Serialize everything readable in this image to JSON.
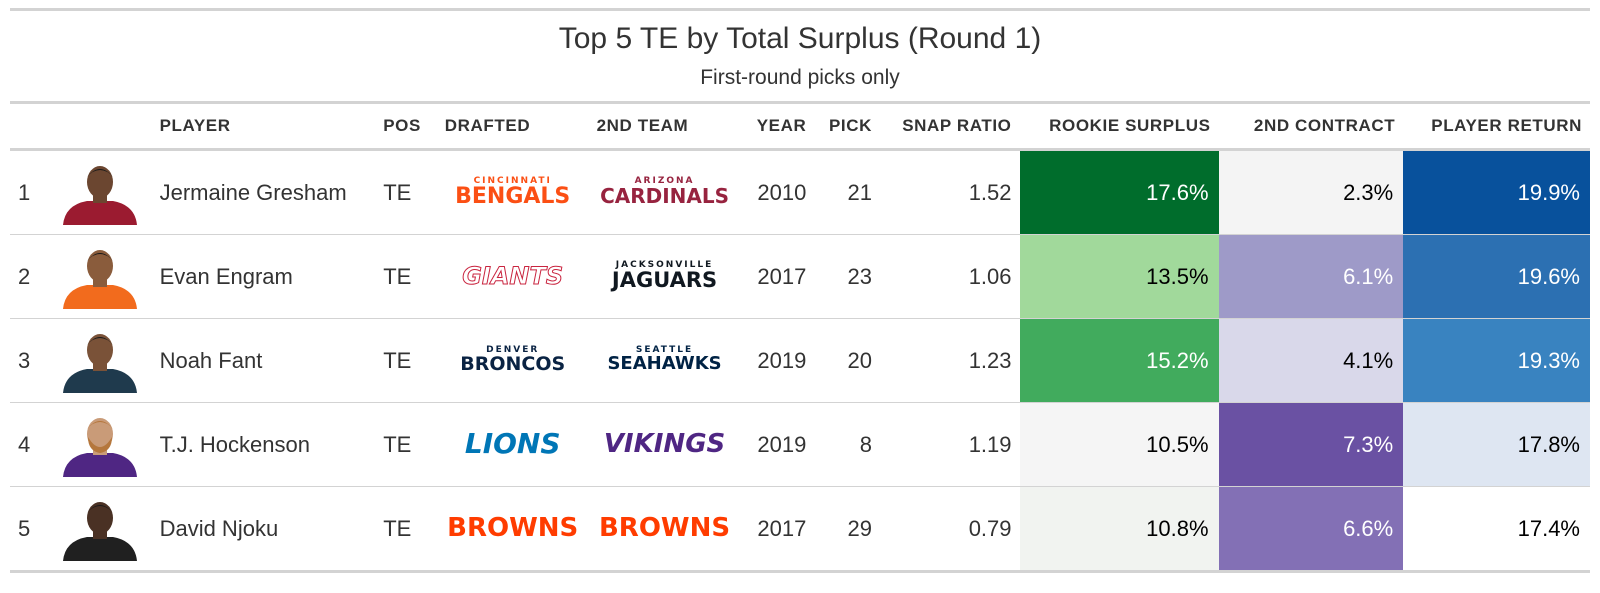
{
  "chart_data": {
    "type": "table",
    "title": "Top 5 TE by Total Surplus (Round 1)",
    "subtitle": "First-round picks only",
    "columns": [
      "",
      "",
      "PLAYER",
      "POS",
      "DRAFTED",
      "2ND TEAM",
      "YEAR",
      "PICK",
      "SNAP RATIO",
      "ROOKIE SURPLUS",
      "2ND CONTRACT",
      "PLAYER RETURN"
    ],
    "rows": [
      {
        "rank": "1",
        "headshot": "player-headshot-arizona-red-jersey",
        "player": "Jermaine Gresham",
        "pos": "TE",
        "drafted": {
          "small": "CINCINNATI",
          "big": "BENGALS",
          "color": "#fb4f14",
          "name": "bengals-logo"
        },
        "second": {
          "small": "ARIZONA",
          "big": "CARDINALS",
          "color": "#97233f",
          "name": "cardinals-logo"
        },
        "year": "2010",
        "pick": "21",
        "snap": "1.52",
        "rookie": "17.6%",
        "rookie_bg": "#006d2c",
        "rookie_fg": "#ffffff",
        "contract": "2.3%",
        "contract_bg": "#f4f4f4",
        "contract_fg": "#000000",
        "ret": "19.9%",
        "ret_bg": "#08519c",
        "ret_fg": "#ffffff"
      },
      {
        "rank": "2",
        "headshot": "player-headshot-orange-jersey",
        "player": "Evan Engram",
        "pos": "TE",
        "drafted": {
          "small": "",
          "big": "GIANTS",
          "color": "#c9243f",
          "name": "giants-logo"
        },
        "second": {
          "small": "JACKSONVILLE",
          "big": "JAGUARS",
          "color": "#101820",
          "name": "jaguars-logo"
        },
        "year": "2017",
        "pick": "23",
        "snap": "1.06",
        "rookie": "13.5%",
        "rookie_bg": "#a1d99b",
        "rookie_fg": "#000000",
        "contract": "6.1%",
        "contract_bg": "#9e9ac8",
        "contract_fg": "#ffffff",
        "ret": "19.6%",
        "ret_bg": "#2c70b2",
        "ret_fg": "#ffffff"
      },
      {
        "rank": "3",
        "headshot": "player-headshot-navy-green-jersey",
        "player": "Noah Fant",
        "pos": "TE",
        "drafted": {
          "small": "DENVER",
          "big": "BRONCOS",
          "color": "#0a2343",
          "name": "broncos-logo"
        },
        "second": {
          "small": "SEATTLE",
          "big": "SEAHAWKS",
          "color": "#002244",
          "name": "seahawks-logo"
        },
        "year": "2019",
        "pick": "20",
        "snap": "1.23",
        "rookie": "15.2%",
        "rookie_bg": "#41ab5d",
        "rookie_fg": "#ffffff",
        "contract": "4.1%",
        "contract_bg": "#d9d8ea",
        "contract_fg": "#000000",
        "ret": "19.3%",
        "ret_bg": "#3983c0",
        "ret_fg": "#ffffff"
      },
      {
        "rank": "4",
        "headshot": "player-headshot-purple-jersey",
        "player": "T.J. Hockenson",
        "pos": "TE",
        "drafted": {
          "small": "",
          "big": "LIONS",
          "color": "#0076b6",
          "name": "lions-logo"
        },
        "second": {
          "small": "",
          "big": "VIKINGS",
          "color": "#4f2683",
          "name": "vikings-logo"
        },
        "year": "2019",
        "pick": "8",
        "snap": "1.19",
        "rookie": "10.5%",
        "rookie_bg": "#f5f5f5",
        "rookie_fg": "#000000",
        "contract": "7.3%",
        "contract_bg": "#6a51a3",
        "contract_fg": "#ffffff",
        "ret": "17.8%",
        "ret_bg": "#dee6f2",
        "ret_fg": "#000000"
      },
      {
        "rank": "5",
        "headshot": "player-headshot-black-jersey",
        "player": "David Njoku",
        "pos": "TE",
        "drafted": {
          "small": "",
          "big": "BROWNS",
          "color": "#ff3c00",
          "name": "browns-logo"
        },
        "second": {
          "small": "",
          "big": "BROWNS",
          "color": "#ff3c00",
          "name": "browns-logo"
        },
        "year": "2017",
        "pick": "29",
        "snap": "0.79",
        "rookie": "10.8%",
        "rookie_bg": "#f1f3f0",
        "rookie_fg": "#000000",
        "contract": "6.6%",
        "contract_bg": "#8370b5",
        "contract_fg": "#ffffff",
        "ret": "17.4%",
        "ret_bg": "#ffffff",
        "ret_fg": "#000000"
      }
    ]
  }
}
